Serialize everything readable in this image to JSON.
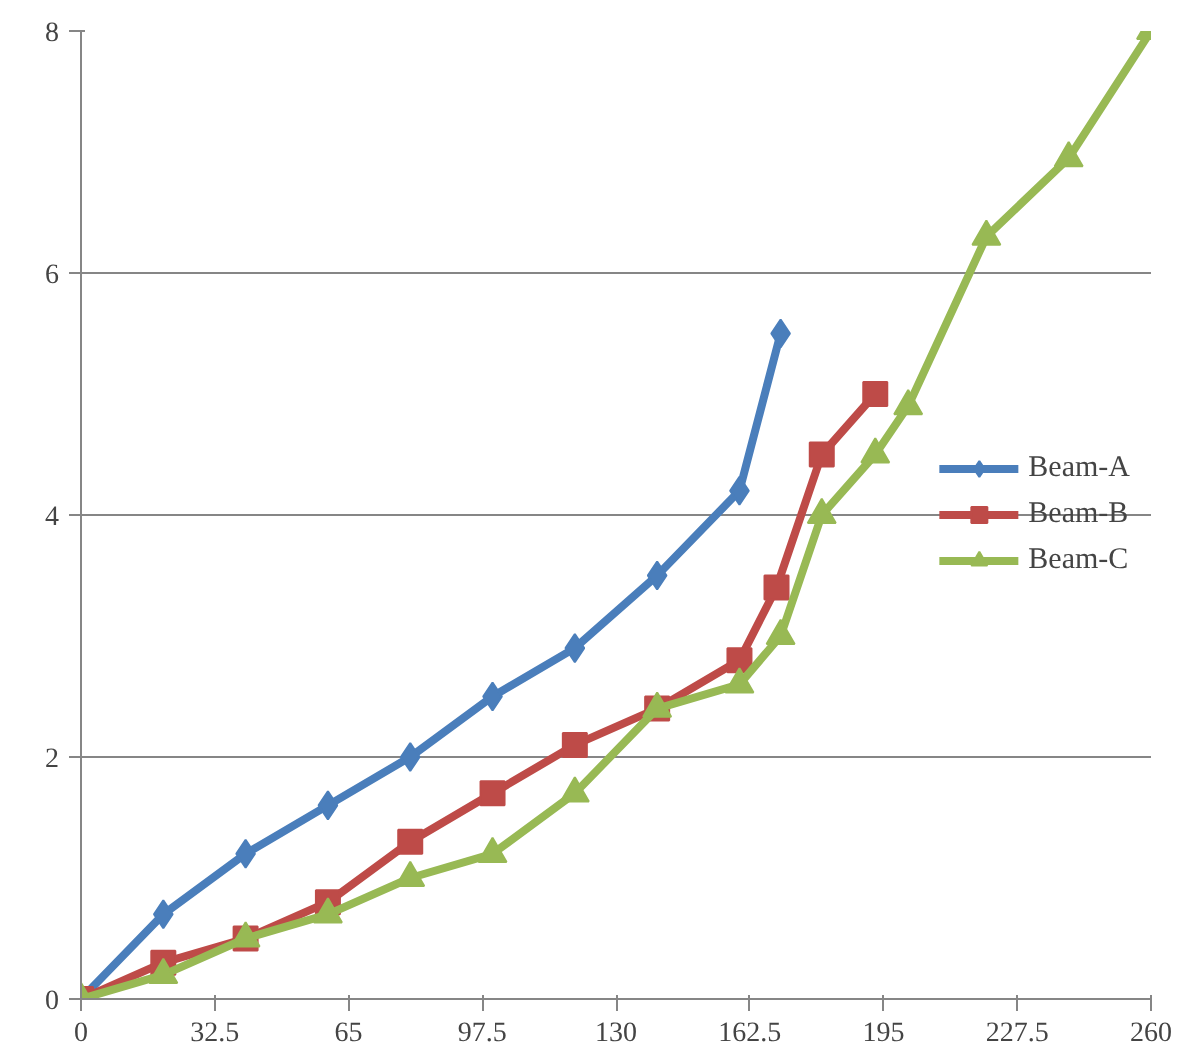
{
  "chart_data": {
    "type": "line",
    "xlim": [
      0,
      260
    ],
    "ylim": [
      0,
      8
    ],
    "xticks": [
      0,
      32.5,
      65,
      97.5,
      130,
      162.5,
      195,
      227.5,
      260
    ],
    "yticks": [
      0,
      2,
      4,
      6,
      8
    ],
    "grid": "y",
    "legend": "right",
    "series": [
      {
        "name": "Beam-A",
        "color": "#4a7ebb",
        "marker": "diamond",
        "x": [
          0,
          20,
          40,
          60,
          80,
          100,
          120,
          140,
          160,
          170
        ],
        "values": [
          0,
          0.7,
          1.2,
          1.6,
          2.0,
          2.5,
          2.9,
          3.5,
          4.2,
          5.5
        ]
      },
      {
        "name": "Beam-B",
        "color": "#be4b48",
        "marker": "square",
        "x": [
          0,
          20,
          40,
          60,
          80,
          100,
          120,
          140,
          160,
          169,
          180,
          193
        ],
        "values": [
          0,
          0.3,
          0.5,
          0.8,
          1.3,
          1.7,
          2.1,
          2.4,
          2.8,
          3.4,
          4.5,
          5.0
        ]
      },
      {
        "name": "Beam-C",
        "color": "#98b954",
        "marker": "triangle",
        "x": [
          0,
          20,
          40,
          60,
          80,
          100,
          120,
          140,
          160,
          170,
          180,
          193,
          201,
          220,
          240,
          260
        ],
        "values": [
          0,
          0.2,
          0.5,
          0.7,
          1.0,
          1.2,
          1.7,
          2.4,
          2.6,
          3.0,
          4.0,
          4.5,
          4.9,
          6.3,
          6.95,
          8.0
        ]
      }
    ]
  }
}
